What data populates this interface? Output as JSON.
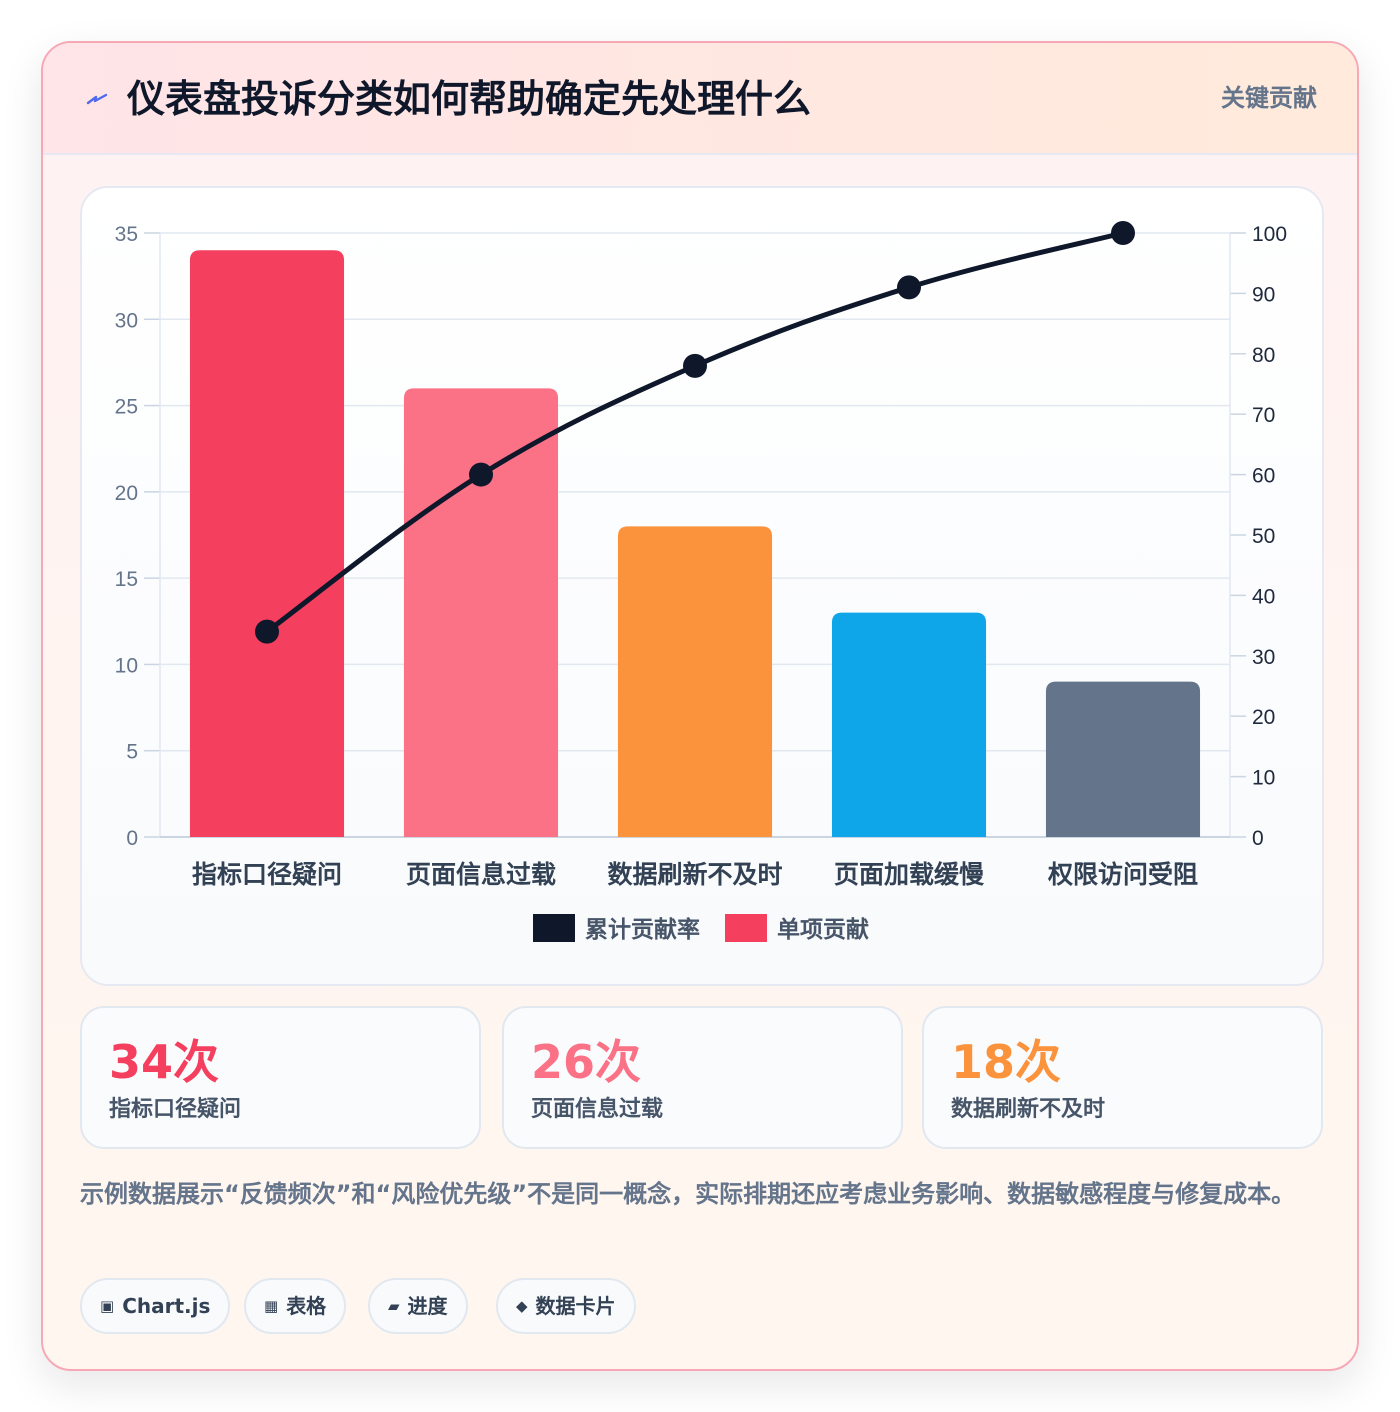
{
  "header": {
    "title": "仪表盘投诉分类如何帮助确定先处理什么",
    "badge": "关键贡献",
    "icon": "lightning-icon",
    "accent": "#4f6bed"
  },
  "chart_data": {
    "type": "bar",
    "categories": [
      "指标口径疑问",
      "页面信息过载",
      "数据刷新不及时",
      "页面加载缓慢",
      "权限访问受阻"
    ],
    "series": [
      {
        "name": "单项贡献",
        "type": "bar",
        "axis": "left",
        "values": [
          34,
          26,
          18,
          13,
          9
        ],
        "colors": [
          "#f43f5e",
          "#fb7185",
          "#fb923c",
          "#0ea5e9",
          "#64748b"
        ],
        "legend_color": "#f43f5e"
      },
      {
        "name": "累计贡献率",
        "type": "line",
        "axis": "right",
        "values": [
          34,
          60,
          78,
          91,
          100
        ],
        "color": "#0f172a"
      }
    ],
    "y_left": {
      "min": 0,
      "max": 35,
      "ticks": [
        0,
        5,
        10,
        15,
        20,
        25,
        30,
        35
      ]
    },
    "y_right": {
      "min": 0,
      "max": 100,
      "ticks": [
        0,
        10,
        20,
        30,
        40,
        50,
        60,
        70,
        80,
        90,
        100
      ]
    },
    "legend_order": [
      "累计贡献率",
      "单项贡献"
    ],
    "legend_position": "bottom",
    "grid": true
  },
  "stats": [
    {
      "value": "34次",
      "label": "指标口径疑问",
      "color": "#f43f5e"
    },
    {
      "value": "26次",
      "label": "页面信息过载",
      "color": "#fb7185"
    },
    {
      "value": "18次",
      "label": "数据刷新不及时",
      "color": "#fb923c"
    }
  ],
  "note": "示例数据展示“反馈频次”和“风险优先级”不是同一概念，实际排期还应考虑业务影响、数据敏感程度与修复成本。",
  "tags": [
    {
      "icon": "▣",
      "label": "Chart.js"
    },
    {
      "icon": "▦",
      "label": "表格"
    },
    {
      "icon": "▰",
      "label": "进度"
    },
    {
      "icon": "◆",
      "label": "数据卡片"
    }
  ]
}
